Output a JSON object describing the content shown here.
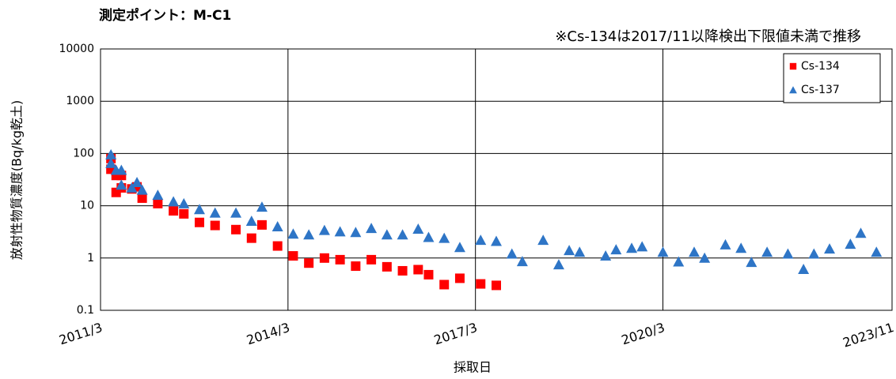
{
  "chart_data": {
    "type": "scatter",
    "title": "測定ポイント：M-C1",
    "annotation": "※Cs-134は2017/11以降検出下限値未満で推移",
    "x_label": "採取日",
    "y_label": "放射性物質濃度(Bq/kg乾土)",
    "xlim": [
      "2011/3",
      "2023/11"
    ],
    "xticks": [
      "2011/3",
      "2014/3",
      "2017/3",
      "2020/3",
      "2023/11"
    ],
    "ylim": [
      0.1,
      10000
    ],
    "yticks": [
      0.1,
      1,
      10,
      100,
      1000,
      10000
    ],
    "y_scale": "log",
    "grid": true,
    "legend": "top-right",
    "series": [
      {
        "name": "Cs-134",
        "color": "#ff0000",
        "marker": "square",
        "x": [
          "2011/5",
          "2011/5",
          "2011/6",
          "2011/6",
          "2011/7",
          "2011/7",
          "2011/9",
          "2011/10",
          "2011/11",
          "2012/2",
          "2012/5",
          "2012/7",
          "2012/10",
          "2013/1",
          "2013/5",
          "2013/8",
          "2013/10",
          "2014/1",
          "2014/4",
          "2014/7",
          "2014/10",
          "2015/1",
          "2015/4",
          "2015/7",
          "2015/10",
          "2016/1",
          "2016/4",
          "2016/6",
          "2016/9",
          "2016/12",
          "2017/4",
          "2017/7"
        ],
        "values": [
          80,
          50,
          38,
          18,
          22,
          38,
          21,
          23,
          14,
          11,
          8,
          7,
          4.8,
          4.2,
          3.5,
          2.4,
          4.3,
          1.7,
          1.1,
          0.8,
          1.0,
          0.93,
          0.7,
          0.93,
          0.68,
          0.57,
          0.6,
          0.48,
          0.31,
          0.41,
          0.32,
          0.3
        ]
      },
      {
        "name": "Cs-137",
        "color": "#2e75c6",
        "marker": "triangle",
        "x": [
          "2011/5",
          "2011/5",
          "2011/6",
          "2011/7",
          "2011/7",
          "2011/9",
          "2011/10",
          "2011/11",
          "2012/2",
          "2012/5",
          "2012/7",
          "2012/10",
          "2013/1",
          "2013/5",
          "2013/8",
          "2013/10",
          "2014/1",
          "2014/4",
          "2014/7",
          "2014/10",
          "2015/1",
          "2015/4",
          "2015/7",
          "2015/10",
          "2016/1",
          "2016/4",
          "2016/6",
          "2016/9",
          "2016/12",
          "2017/4",
          "2017/7",
          "2017/10",
          "2017/12",
          "2018/4",
          "2018/7",
          "2018/9",
          "2018/11",
          "2019/4",
          "2019/6",
          "2019/9",
          "2019/11",
          "2020/3",
          "2020/6",
          "2020/9",
          "2020/11",
          "2021/3",
          "2021/6",
          "2021/8",
          "2021/11",
          "2022/3",
          "2022/6",
          "2022/8",
          "2022/11",
          "2023/3",
          "2023/5",
          "2023/8"
        ],
        "values": [
          95,
          65,
          48,
          25,
          48,
          22,
          28,
          20,
          16,
          12,
          11,
          8.5,
          7.3,
          7.3,
          5.1,
          9.5,
          4,
          2.9,
          2.8,
          3.4,
          3.2,
          3.1,
          3.7,
          2.8,
          2.8,
          3.6,
          2.5,
          2.4,
          1.6,
          2.2,
          2.1,
          1.2,
          0.86,
          2.2,
          0.75,
          1.4,
          1.3,
          1.1,
          1.45,
          1.55,
          1.65,
          1.3,
          0.85,
          1.3,
          1.0,
          1.8,
          1.55,
          0.83,
          1.3,
          1.2,
          0.61,
          1.2,
          1.5,
          1.85,
          3.0,
          1.3
        ]
      }
    ]
  }
}
